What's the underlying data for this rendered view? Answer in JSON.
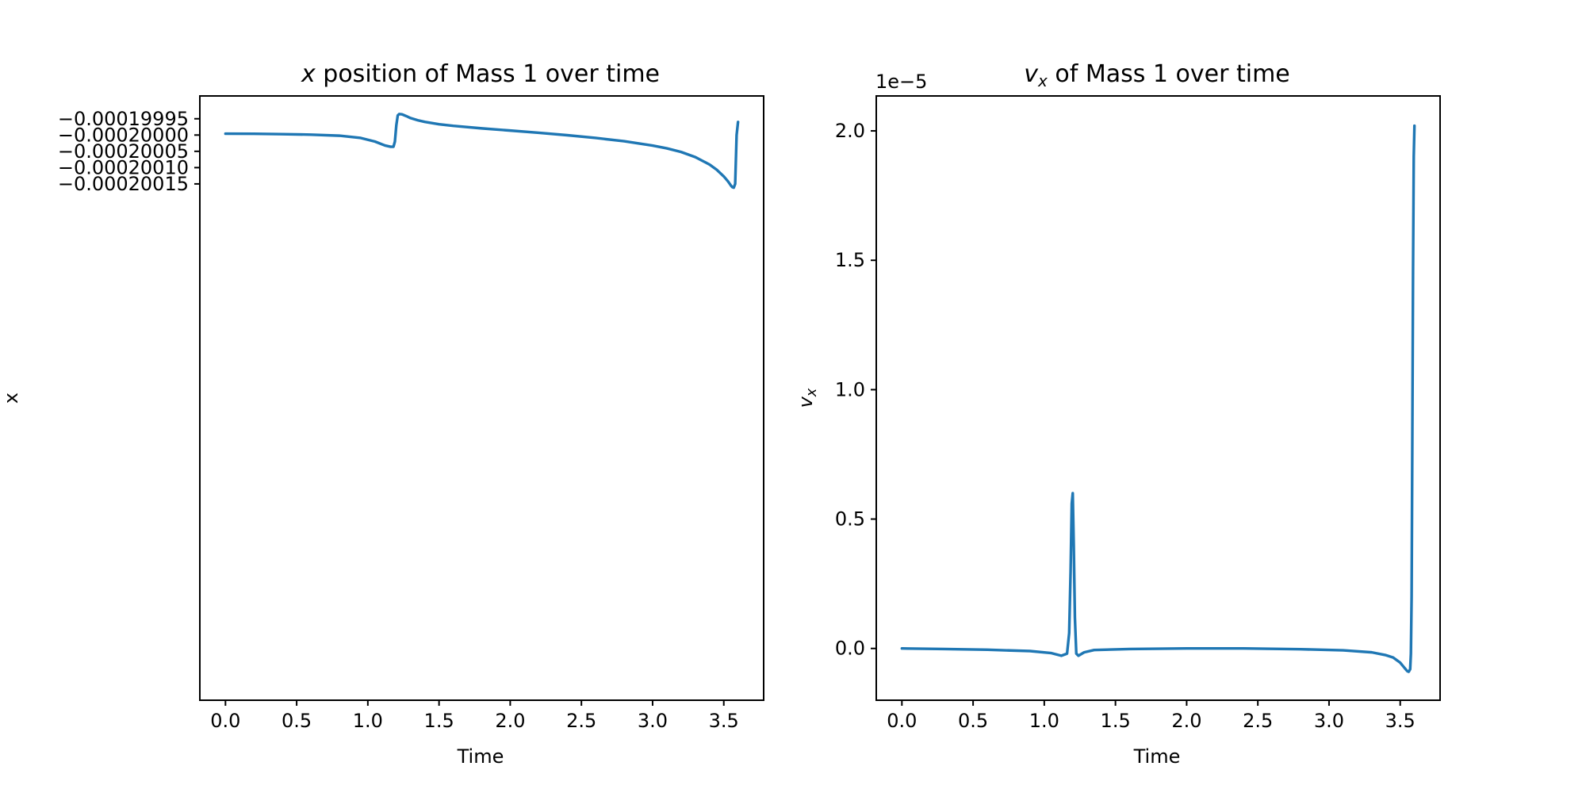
{
  "colors": {
    "series": "#1f77b4",
    "axes": "#000000",
    "background": "#ffffff"
  },
  "chart_data": [
    {
      "type": "line",
      "title": "x position of Mass 1 over time",
      "title_parts": {
        "italic": "x",
        "rest": " position of Mass 1 over time"
      },
      "xlabel": "Time",
      "ylabel": "x",
      "xlim": [
        -0.18,
        3.78
      ],
      "ylim": [
        -0.000201735,
        -0.00019988
      ],
      "xticks": [
        0.0,
        0.5,
        1.0,
        1.5,
        2.0,
        2.5,
        3.0,
        3.5
      ],
      "xtick_labels": [
        "0.0",
        "0.5",
        "1.0",
        "1.5",
        "2.0",
        "2.5",
        "3.0",
        "3.5"
      ],
      "yticks": [
        -0.00020015,
        -0.0002001,
        -0.00020005,
        -0.0002,
        -0.00019995
      ],
      "ytick_labels": [
        "−0.00020015",
        "−0.00020010",
        "−0.00020005",
        "−0.00020000",
        "−0.00019995"
      ],
      "grid": false,
      "series": [
        {
          "x": [
            0.0,
            0.2,
            0.4,
            0.6,
            0.8,
            0.95,
            1.05,
            1.12,
            1.16,
            1.18,
            1.19,
            1.2,
            1.21,
            1.22,
            1.24,
            1.27,
            1.3,
            1.35,
            1.4,
            1.5,
            1.6,
            1.8,
            2.0,
            2.2,
            2.4,
            2.6,
            2.8,
            3.0,
            3.1,
            3.2,
            3.3,
            3.4,
            3.45,
            3.5,
            3.53,
            3.55,
            3.56,
            3.57,
            3.58,
            3.59,
            3.6
          ],
          "y": [
            -0.0001999958,
            -0.0001999962,
            -0.0001999972,
            -0.0001999988,
            -0.000200002,
            -0.000200009,
            -0.00020002,
            -0.000200032,
            -0.000200036,
            -0.0002000358,
            -0.00020002,
            -0.00019997,
            -0.0001999398,
            -0.0001999355,
            -0.0001999365,
            -0.0001999418,
            -0.000199948,
            -0.0001999545,
            -0.0001999595,
            -0.0001999668,
            -0.0001999718,
            -0.0001999795,
            -0.0001999862,
            -0.000199993,
            -0.0002000005,
            -0.000200009,
            -0.000200019,
            -0.0002000322,
            -0.0002000408,
            -0.000200052,
            -0.0002000678,
            -0.0002000905,
            -0.0002001065,
            -0.000200127,
            -0.0002001425,
            -0.000200155,
            -0.00020016,
            -0.0002001615,
            -0.00020015,
            -0.0002,
            -0.00019996
          ]
        }
      ]
    },
    {
      "type": "line",
      "title": "v_x of Mass 1 over time",
      "title_parts": {
        "italic": "v",
        "subscript": "x",
        "rest": " of Mass 1 over time"
      },
      "xlabel": "Time",
      "ylabel": "v_x",
      "ylabel_parts": {
        "italic": "v",
        "subscript": "x"
      },
      "offset_text": "1e−5",
      "xlim": [
        -0.18,
        3.78
      ],
      "ylim": [
        -2e-06,
        2.135e-05
      ],
      "xticks": [
        0.0,
        0.5,
        1.0,
        1.5,
        2.0,
        2.5,
        3.0,
        3.5
      ],
      "xtick_labels": [
        "0.0",
        "0.5",
        "1.0",
        "1.5",
        "2.0",
        "2.5",
        "3.0",
        "3.5"
      ],
      "yticks": [
        0.0,
        5e-06,
        1e-05,
        1.5e-05,
        2e-05
      ],
      "ytick_labels": [
        "0.0",
        "0.5",
        "1.0",
        "1.5",
        "2.0"
      ],
      "grid": false,
      "series": [
        {
          "x": [
            0.0,
            0.3,
            0.6,
            0.9,
            1.05,
            1.12,
            1.16,
            1.175,
            1.185,
            1.193,
            1.2,
            1.207,
            1.215,
            1.225,
            1.24,
            1.28,
            1.35,
            1.6,
            2.0,
            2.4,
            2.8,
            3.1,
            3.3,
            3.4,
            3.45,
            3.5,
            3.53,
            3.55,
            3.56,
            3.57,
            3.575,
            3.58,
            3.585,
            3.59,
            3.595,
            3.6
          ],
          "y": [
            0.0,
            -2e-08,
            -5e-08,
            -1e-07,
            -1.8e-07,
            -2.8e-07,
            -2e-07,
            6e-07,
            3e-06,
            5.6e-06,
            6e-06,
            4e-06,
            1.2e-06,
            -2e-07,
            -2.8e-07,
            -1.5e-07,
            -6e-08,
            -2e-08,
            0.0,
            0.0,
            -3e-08,
            -7e-08,
            -1.5e-07,
            -2.6e-07,
            -3.5e-07,
            -5.5e-07,
            -7.5e-07,
            -8.8e-07,
            -9e-07,
            -8e-07,
            -2e-07,
            2e-06,
            8e-06,
            1.45e-05,
            1.9e-05,
            2.02e-05
          ]
        }
      ]
    }
  ]
}
